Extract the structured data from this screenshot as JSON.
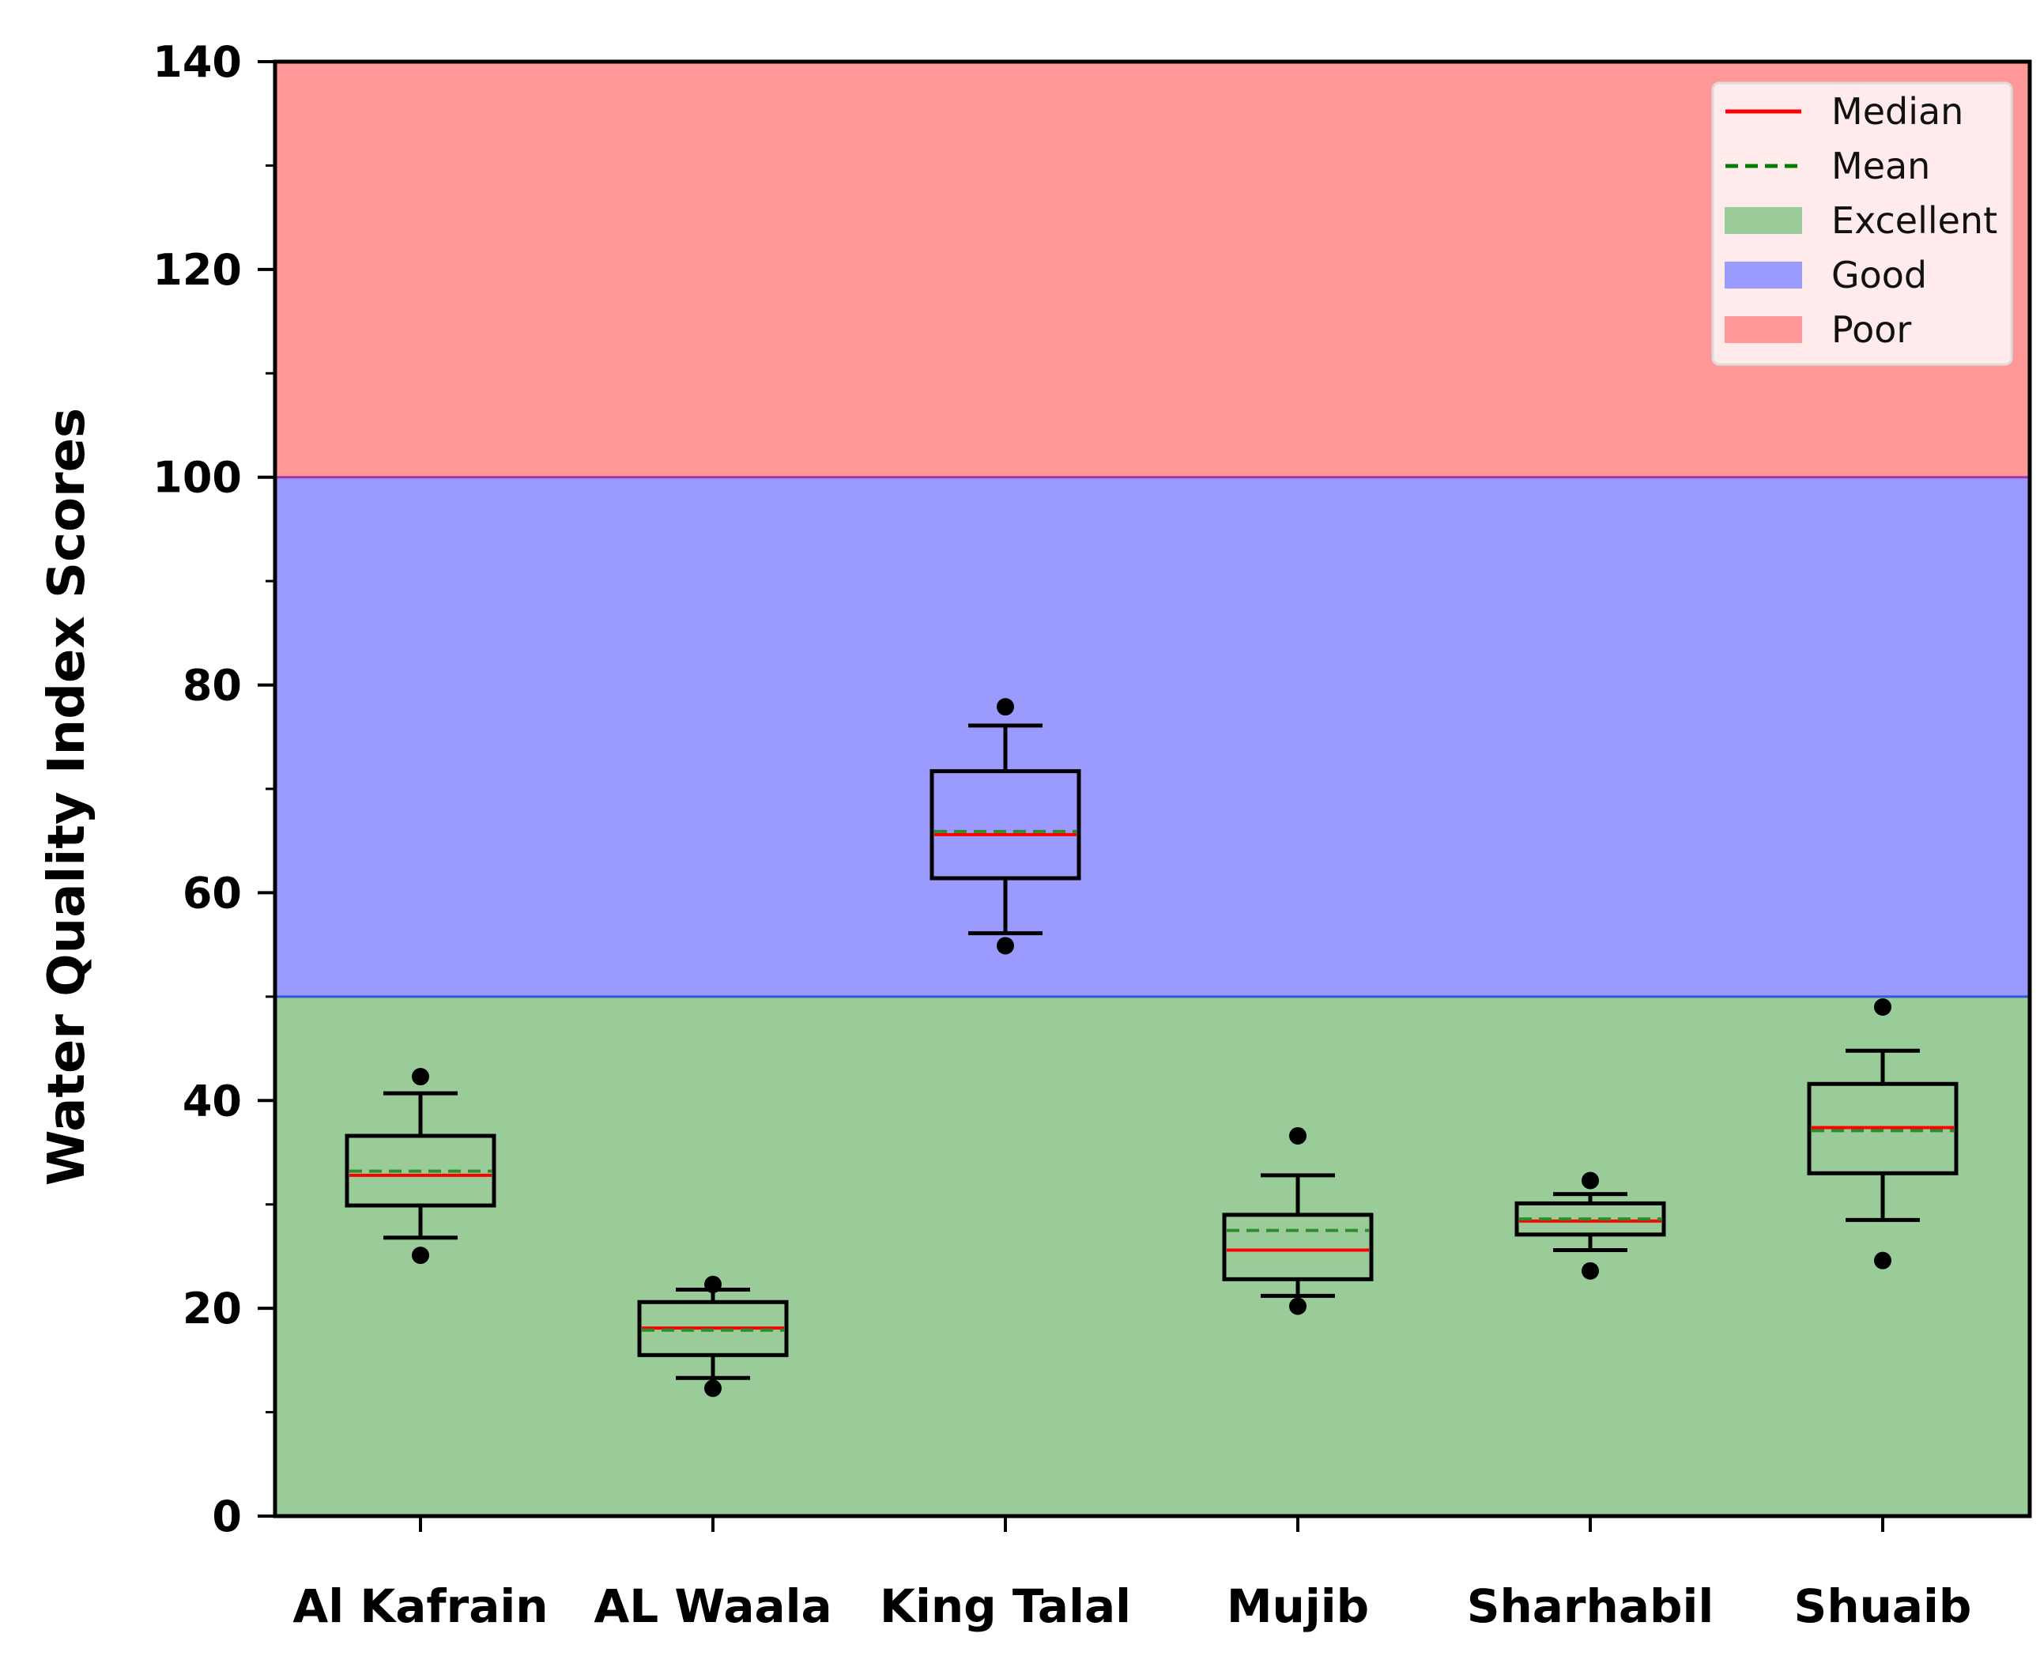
{
  "chart_data": {
    "type": "box",
    "title": "",
    "xlabel": "",
    "ylabel": "Water Quality Index Scores",
    "ylim": [
      0,
      140
    ],
    "yticks": [
      0,
      20,
      40,
      60,
      80,
      100,
      120,
      140
    ],
    "yticks_minor": [
      10,
      30,
      50,
      70,
      90,
      110,
      130
    ],
    "grid": false,
    "legend_position": "top-right",
    "categories": [
      "Al Kafrain",
      "AL Waala",
      "King Talal",
      "Mujib",
      "Sharhabil",
      "Shuaib"
    ],
    "bands": [
      {
        "label": "Excellent",
        "from": 0,
        "to": 50,
        "color": "#99cc99"
      },
      {
        "label": "Good",
        "from": 50,
        "to": 100,
        "color": "#9a9aff"
      },
      {
        "label": "Poor",
        "from": 100,
        "to": 140,
        "color": "#ff9999"
      }
    ],
    "boxes": [
      {
        "category": "Al Kafrain",
        "whisker_low": 26.8,
        "q1": 29.9,
        "median": 32.8,
        "mean": 33.2,
        "q3": 36.6,
        "whisker_high": 40.7,
        "outliers": [
          25.1,
          42.3
        ]
      },
      {
        "category": "AL Waala",
        "whisker_low": 13.3,
        "q1": 15.5,
        "median": 18.1,
        "mean": 17.9,
        "q3": 20.6,
        "whisker_high": 21.8,
        "outliers": [
          12.3,
          22.3
        ]
      },
      {
        "category": "King Talal",
        "whisker_low": 56.1,
        "q1": 61.4,
        "median": 65.6,
        "mean": 65.9,
        "q3": 71.7,
        "whisker_high": 76.1,
        "outliers": [
          54.9,
          77.9
        ]
      },
      {
        "category": "Mujib",
        "whisker_low": 21.2,
        "q1": 22.8,
        "median": 25.6,
        "mean": 27.5,
        "q3": 29.0,
        "whisker_high": 32.8,
        "outliers": [
          20.2,
          36.6
        ]
      },
      {
        "category": "Sharhabil",
        "whisker_low": 25.6,
        "q1": 27.1,
        "median": 28.4,
        "mean": 28.6,
        "q3": 30.1,
        "whisker_high": 31.0,
        "outliers": [
          23.6,
          32.3
        ]
      },
      {
        "category": "Shuaib",
        "whisker_low": 28.5,
        "q1": 33.0,
        "median": 37.4,
        "mean": 37.1,
        "q3": 41.6,
        "whisker_high": 44.8,
        "outliers": [
          24.6,
          49.0
        ]
      }
    ],
    "legend": [
      {
        "label": "Median",
        "kind": "line",
        "color": "#ff0000",
        "dashed": false
      },
      {
        "label": "Mean",
        "kind": "line",
        "color": "#008000",
        "dashed": true
      },
      {
        "label": "Excellent",
        "kind": "patch",
        "color": "#99cc99"
      },
      {
        "label": "Good",
        "kind": "patch",
        "color": "#9a9aff"
      },
      {
        "label": "Poor",
        "kind": "patch",
        "color": "#ff9999"
      }
    ],
    "colors": {
      "median": "#ff0000",
      "mean": "#2e8b2e",
      "box_stroke": "#000000",
      "good_line": "#3355dd",
      "poor_line": "#aa33aa"
    }
  }
}
